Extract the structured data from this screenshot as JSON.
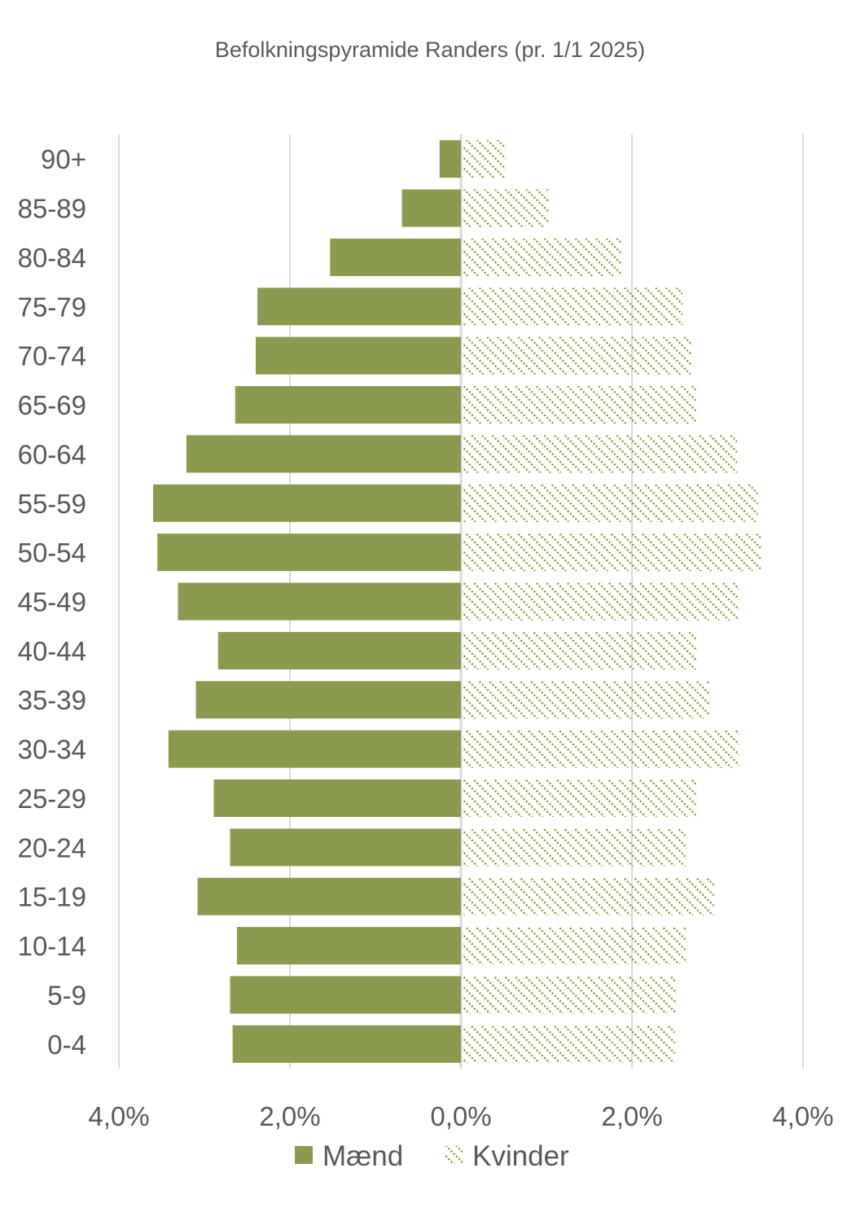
{
  "chart_data": {
    "type": "bar",
    "orientation": "horizontal",
    "subtype": "population-pyramid",
    "title": "Befolkningspyramide Randers (pr. 1/1 2025)",
    "xlabel": "",
    "ylabel": "",
    "xlim": [
      -4,
      4
    ],
    "xticks": [
      -4,
      -2,
      0,
      2,
      4
    ],
    "xtick_labels": [
      "4,0%",
      "2,0%",
      "0,0%",
      "2,0%",
      "4,0%"
    ],
    "grid": true,
    "legend_position": "bottom",
    "categories": [
      "90+",
      "85-89",
      "80-84",
      "75-79",
      "70-74",
      "65-69",
      "60-64",
      "55-59",
      "50-54",
      "45-49",
      "40-44",
      "35-39",
      "30-34",
      "25-29",
      "20-24",
      "15-19",
      "10-14",
      "5-9",
      "0-4"
    ],
    "series": [
      {
        "name": "Mænd",
        "side": "left",
        "color": "#8a9a4f",
        "pattern": "solid",
        "values": [
          0.25,
          0.69,
          1.53,
          2.38,
          2.4,
          2.64,
          3.21,
          3.6,
          3.55,
          3.31,
          2.84,
          3.1,
          3.42,
          2.89,
          2.7,
          3.08,
          2.62,
          2.7,
          2.67
        ]
      },
      {
        "name": "Kvinder",
        "side": "right",
        "color": "#7f9a2f",
        "pattern": "dotted-diagonal",
        "values": [
          0.52,
          1.03,
          1.88,
          2.59,
          2.7,
          2.75,
          3.23,
          3.47,
          3.51,
          3.25,
          2.76,
          2.91,
          3.25,
          2.76,
          2.64,
          2.96,
          2.64,
          2.52,
          2.5
        ]
      }
    ],
    "unit": "%"
  }
}
